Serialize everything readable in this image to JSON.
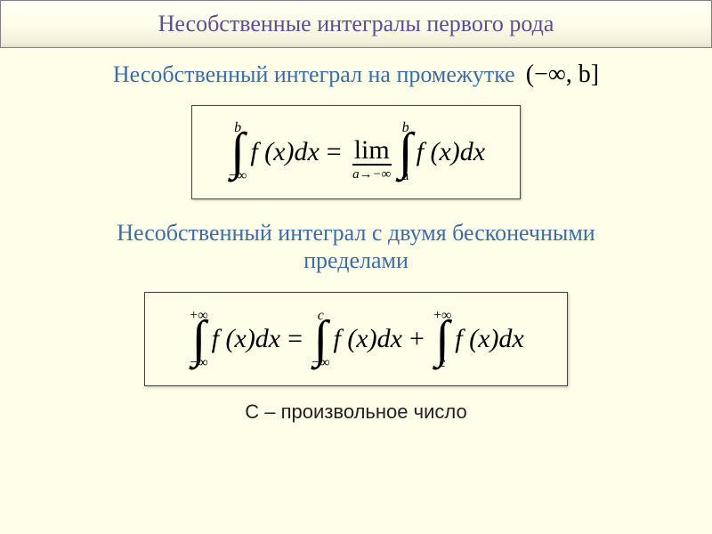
{
  "title": "Несобственные интегралы первого рода",
  "heading1_text": "Несобственный интеграл на промежутке",
  "interval_text": "(−∞, b]",
  "heading2_line1": "Несобственный интеграл с двумя бесконечными",
  "heading2_line2": "пределами",
  "footnote": "С – произвольное число",
  "formula1": {
    "lhs_upper": "b",
    "lhs_lower": "−∞",
    "integrand": "f (x)dx",
    "eq": "=",
    "lim_label": "lim",
    "lim_sub": "a→−∞",
    "rhs_upper": "b",
    "rhs_lower": "a"
  },
  "formula2": {
    "lhs_upper": "+∞",
    "lhs_lower": "−∞",
    "integrand": "f (x)dx",
    "eq": "=",
    "mid_upper": "c",
    "mid_lower": "−∞",
    "plus": "+",
    "rhs_upper": "+∞",
    "rhs_lower": "c"
  },
  "colors": {
    "background": "#fffee8",
    "title_color": "#5a4e96",
    "heading_color": "#3b6ea5",
    "border": "#444444"
  }
}
